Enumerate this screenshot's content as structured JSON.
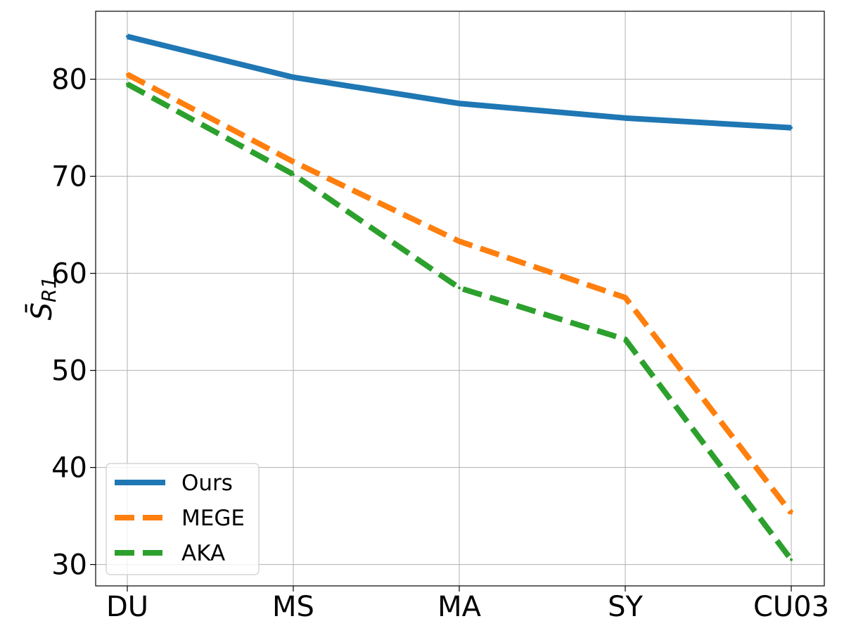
{
  "chart_data": {
    "type": "line",
    "title": "",
    "xlabel": "",
    "ylabel": "S̄R1",
    "ylabel_main": "S̄",
    "ylabel_sub": "R1",
    "categories": [
      "DU",
      "MS",
      "MA",
      "SY",
      "CU03"
    ],
    "yticks": [
      "30",
      "40",
      "50",
      "60",
      "70",
      "80"
    ],
    "ylim": [
      27.8,
      87.0
    ],
    "grid": true,
    "legend_position": "lower-left",
    "series": [
      {
        "name": "Ours",
        "values": [
          84.4,
          80.2,
          77.5,
          76.0,
          75.0
        ],
        "color": "#1f77b4",
        "style": "solid"
      },
      {
        "name": "MEGE",
        "values": [
          80.5,
          71.5,
          63.3,
          57.5,
          35.3
        ],
        "color": "#ff7f0e",
        "style": "dashed"
      },
      {
        "name": "AKA",
        "values": [
          79.5,
          70.2,
          58.5,
          53.2,
          30.5
        ],
        "color": "#2ca02c",
        "style": "dashed"
      }
    ]
  }
}
